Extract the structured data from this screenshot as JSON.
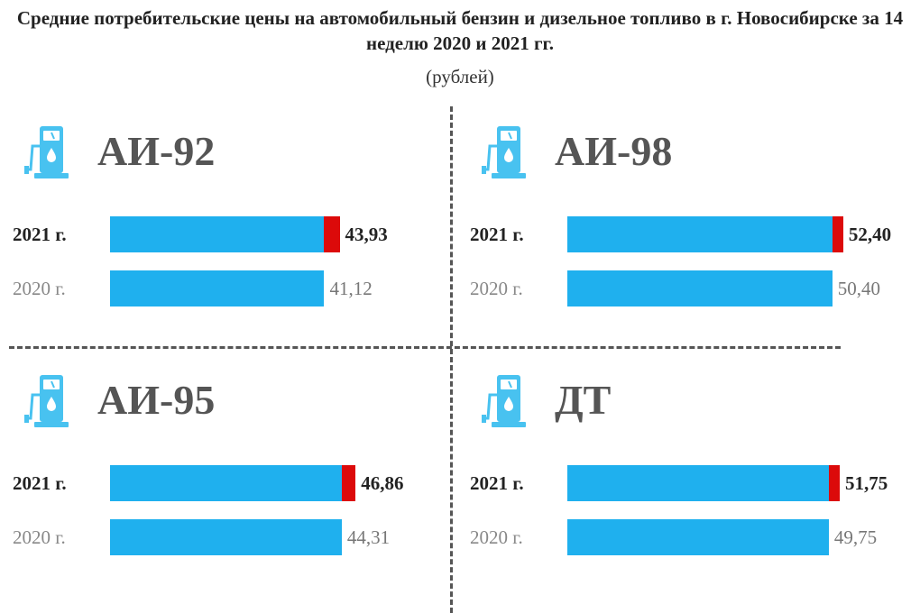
{
  "chart_data": {
    "type": "bar",
    "orientation": "horizontal",
    "title": "Средние потребительские цены на автомобильный бензин и дизельное топливо в г. Новосибирске за 14 неделю 2020 и 2021 гг.",
    "subtitle": "(рублей)",
    "year_labels": [
      "2021 г.",
      "2020 г."
    ],
    "panels": [
      {
        "fuel": "АИ-92",
        "value_2021": 43.93,
        "value_2020": 41.12,
        "label_2021": "43,93",
        "label_2020": "41,12"
      },
      {
        "fuel": "АИ-98",
        "value_2021": 52.4,
        "value_2020": 50.4,
        "label_2021": "52,40",
        "label_2020": "50,40"
      },
      {
        "fuel": "АИ-95",
        "value_2021": 46.86,
        "value_2020": 44.31,
        "label_2021": "46,86",
        "label_2020": "44,31"
      },
      {
        "fuel": "ДТ",
        "value_2021": 51.75,
        "value_2020": 49.75,
        "label_2021": "51,75",
        "label_2020": "49,75"
      }
    ],
    "legend": "none",
    "grid": false,
    "colors": {
      "base": "#1fb0ee",
      "increase": "#dc0a0a",
      "icon": "#48c2f0"
    }
  }
}
